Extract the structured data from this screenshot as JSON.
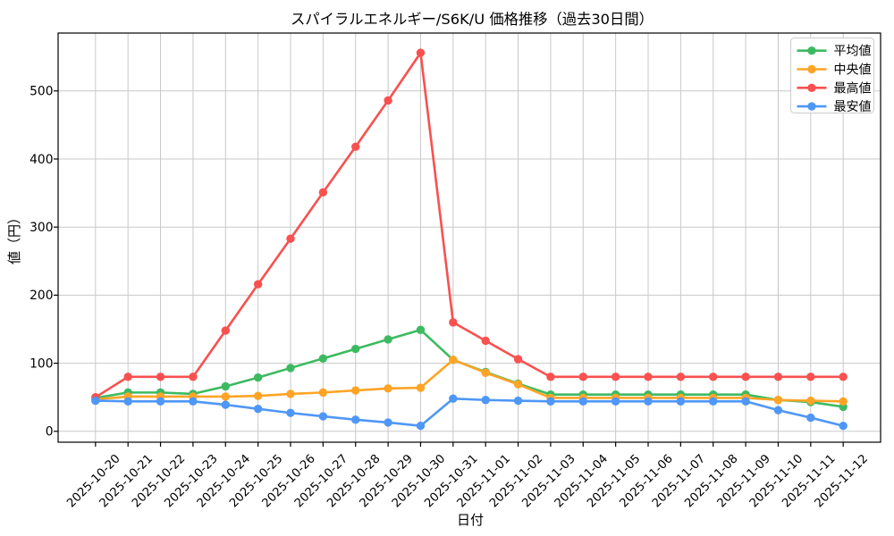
{
  "chart_data": {
    "type": "line",
    "title": "スパイラルエネルギー/S6K/U 価格推移（過去30日間）",
    "xlabel": "日付",
    "ylabel": "値（円）",
    "x": [
      "2025-10-20",
      "2025-10-21",
      "2025-10-22",
      "2025-10-23",
      "2025-10-24",
      "2025-10-25",
      "2025-10-26",
      "2025-10-27",
      "2025-10-28",
      "2025-10-29",
      "2025-10-30",
      "2025-10-31",
      "2025-11-01",
      "2025-11-02",
      "2025-11-03",
      "2025-11-04",
      "2025-11-05",
      "2025-11-06",
      "2025-11-07",
      "2025-11-08",
      "2025-11-09",
      "2025-11-10",
      "2025-11-11",
      "2025-11-12"
    ],
    "series": [
      {
        "name": "平均値",
        "color": "#3dba61",
        "values": [
          49,
          57,
          57,
          55,
          66,
          79,
          93,
          107,
          121,
          135,
          149,
          105,
          87,
          70,
          54,
          54,
          54,
          54,
          54,
          54,
          54,
          46,
          43,
          36
        ]
      },
      {
        "name": "中央値",
        "color": "#ffa426",
        "values": [
          47,
          51,
          51,
          51,
          51,
          52,
          55,
          57,
          60,
          63,
          64,
          105,
          86,
          69,
          49,
          49,
          49,
          49,
          49,
          49,
          49,
          46,
          45,
          44
        ]
      },
      {
        "name": "最高値",
        "color": "#f8514f",
        "values": [
          50,
          80,
          80,
          80,
          148,
          216,
          283,
          351,
          418,
          486,
          556,
          160,
          133,
          106,
          80,
          80,
          80,
          80,
          80,
          80,
          80,
          80,
          80,
          80
        ]
      },
      {
        "name": "最安値",
        "color": "#4f97f6",
        "values": [
          45,
          44,
          44,
          44,
          39,
          33,
          27,
          22,
          17,
          13,
          8,
          48,
          46,
          45,
          44,
          44,
          44,
          44,
          44,
          44,
          44,
          31,
          20,
          8
        ]
      }
    ],
    "yticks": [
      0,
      100,
      200,
      300,
      400,
      500
    ],
    "ylim": [
      -16,
      585
    ],
    "xlim_pad": 1.15,
    "grid": true,
    "legend_position": "upper right",
    "grid_color": "#c8c8c8",
    "spine_color": "#000000"
  }
}
